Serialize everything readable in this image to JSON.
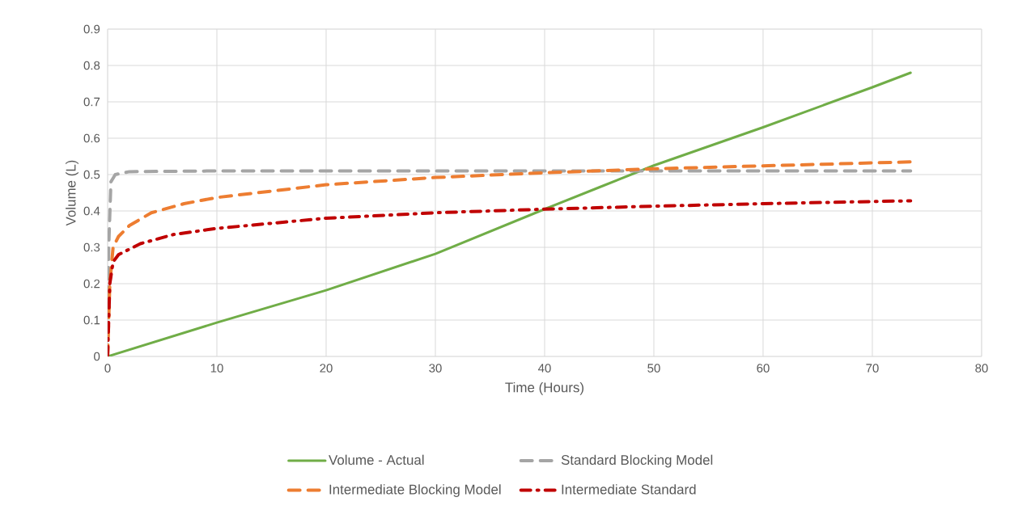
{
  "chart_data": {
    "type": "line",
    "xlabel": "Time (Hours)",
    "ylabel": "Volume (L)",
    "xlim": [
      0,
      80
    ],
    "xticks": [
      0,
      10,
      20,
      30,
      40,
      50,
      60,
      70,
      80
    ],
    "ylim": [
      0,
      0.9
    ],
    "yticks": [
      0,
      0.1,
      0.2,
      0.3,
      0.4,
      0.5,
      0.6,
      0.7,
      0.8,
      0.9
    ],
    "grid": true,
    "legend": "bottom",
    "series": [
      {
        "name": "Volume - Actual",
        "color": "#70ad47",
        "line_style": "solid",
        "x": [
          0,
          10,
          20,
          30,
          40,
          45,
          50,
          60,
          70,
          73.5
        ],
        "values": [
          0,
          0.093,
          0.182,
          0.282,
          0.405,
          0.465,
          0.525,
          0.63,
          0.74,
          0.78
        ]
      },
      {
        "name": "Standard Blocking Model",
        "color": "#a5a5a5",
        "line_style": "dashed",
        "x": [
          0,
          0.1,
          0.3,
          0.7,
          2,
          10,
          73.5
        ],
        "values": [
          0,
          0.3,
          0.48,
          0.5,
          0.508,
          0.51,
          0.51
        ]
      },
      {
        "name": "Intermediate Blocking Model",
        "color": "#ed7d31",
        "line_style": "dashed",
        "x": [
          0,
          0.2,
          0.5,
          1,
          2,
          4,
          7,
          10,
          20,
          30,
          40,
          50,
          60,
          73.5
        ],
        "values": [
          0,
          0.2,
          0.3,
          0.33,
          0.36,
          0.395,
          0.42,
          0.437,
          0.472,
          0.492,
          0.505,
          0.516,
          0.524,
          0.535
        ]
      },
      {
        "name": "Intermediate Standard",
        "color": "#c00000",
        "line_style": "dashdot",
        "x": [
          0,
          0.2,
          0.5,
          1,
          3,
          6,
          10,
          20,
          30,
          40,
          50,
          60,
          73.5
        ],
        "values": [
          0,
          0.2,
          0.26,
          0.28,
          0.31,
          0.335,
          0.352,
          0.38,
          0.395,
          0.405,
          0.413,
          0.42,
          0.428
        ]
      }
    ]
  }
}
